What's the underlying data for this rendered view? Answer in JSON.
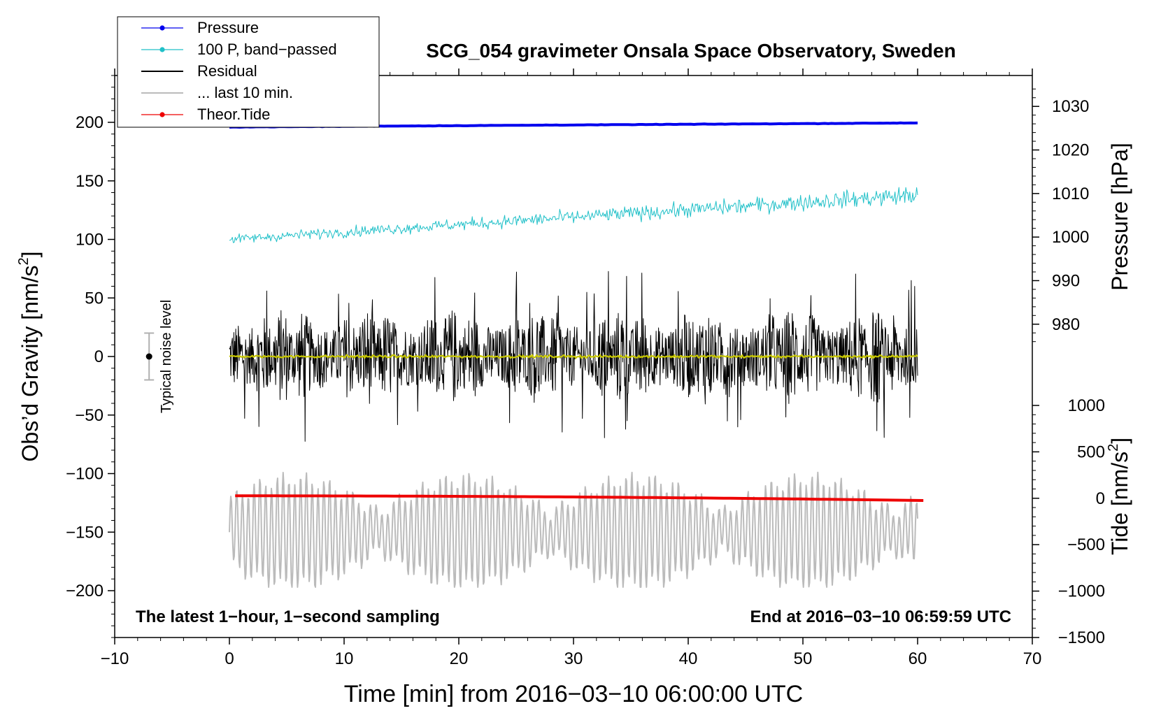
{
  "chart_data": {
    "type": "line",
    "title": "SCG_054 gravimeter Onsala Space Observatory, Sweden",
    "xlabel": "Time [min] from 2016−03−10 06:00:00 UTC",
    "ylabel_left": "Obs’d Gravity [nm/s",
    "ylabel_left_sup": "2",
    "ylabel_left_close": "]",
    "ylabel_right_pressure": "Pressure [hPa]",
    "ylabel_right_tide": "Tide [nm/s",
    "ylabel_right_tide_sup": "2",
    "ylabel_right_tide_close": "]",
    "xlim": [
      -10,
      70
    ],
    "ylim_left": [
      -240,
      240
    ],
    "x_ticks": [
      -10,
      0,
      10,
      20,
      30,
      40,
      50,
      60,
      70
    ],
    "x_tick_labels": [
      "−10",
      "0",
      "10",
      "20",
      "30",
      "40",
      "50",
      "60",
      "70"
    ],
    "y_left_ticks": [
      200,
      150,
      100,
      50,
      0,
      -50,
      -100,
      -150,
      -200
    ],
    "y_left_tick_labels": [
      "200",
      "150",
      "100",
      "50",
      "0",
      "−50",
      "−100",
      "−150",
      "−200"
    ],
    "pressure_axis": {
      "ticks": [
        1030,
        1020,
        1010,
        1000,
        990,
        980
      ],
      "tick_labels": [
        "1030",
        "1020",
        "1010",
        "1000",
        "990",
        "980"
      ],
      "note": "100 hPa-equivalent mapping: 1000 hPa at gravity 102, slope 3.72 units per hPa"
    },
    "tide_axis": {
      "ticks": [
        1000,
        500,
        0,
        -500,
        -1000,
        -1500
      ],
      "tick_labels": [
        "1000",
        "500",
        "0",
        "−500",
        "−1000",
        "−1500"
      ]
    },
    "legend": [
      {
        "name": "Pressure",
        "color": "#0000ee",
        "marker": true
      },
      {
        "name": "100 P, band−passed",
        "color": "#20c0c8",
        "marker": true
      },
      {
        "name": "Residual",
        "color": "#000000",
        "marker": false
      },
      {
        "name": "... last 10 min.",
        "color": "#bbbbbb",
        "marker": false
      },
      {
        "name": "Theor.Tide",
        "color": "#ee0000",
        "marker": true
      }
    ],
    "legend_position": "top-left",
    "series": [
      {
        "name": "Pressure",
        "color": "#0000ee",
        "x_range": [
          0,
          60
        ],
        "start": 196,
        "end": 199.5,
        "noise": 0.4
      },
      {
        "name": "100 P, band−passed",
        "color": "#20c0c8",
        "x_range": [
          0,
          60
        ],
        "start": 100,
        "end": 138,
        "noise": 4.5
      },
      {
        "name": "Residual",
        "color": "#000000",
        "x_range": [
          0,
          60
        ],
        "envelope_max": 75,
        "envelope_min": -75,
        "typical_amplitude": 30
      },
      {
        "name": "Residual (smoothed)",
        "color": "#c8c800",
        "x_range": [
          0,
          60
        ],
        "level": 0
      },
      {
        "name": "... last 10 min.",
        "color": "#bbbbbb",
        "x_range": [
          0,
          60
        ],
        "center": -150,
        "envelope_min": -197,
        "envelope_max": -98
      },
      {
        "name": "Theor.Tide",
        "color": "#ee0000",
        "x_range": [
          0.5,
          60.5
        ],
        "start": -119,
        "end": -123
      }
    ],
    "noise_indicator": {
      "label": "Typical noise level",
      "x": -7,
      "y": 0,
      "error": 20
    },
    "annotation_left": "The latest 1−hour, 1−second sampling",
    "annotation_right": "End at 2016−03−10 06:59:59 UTC"
  }
}
